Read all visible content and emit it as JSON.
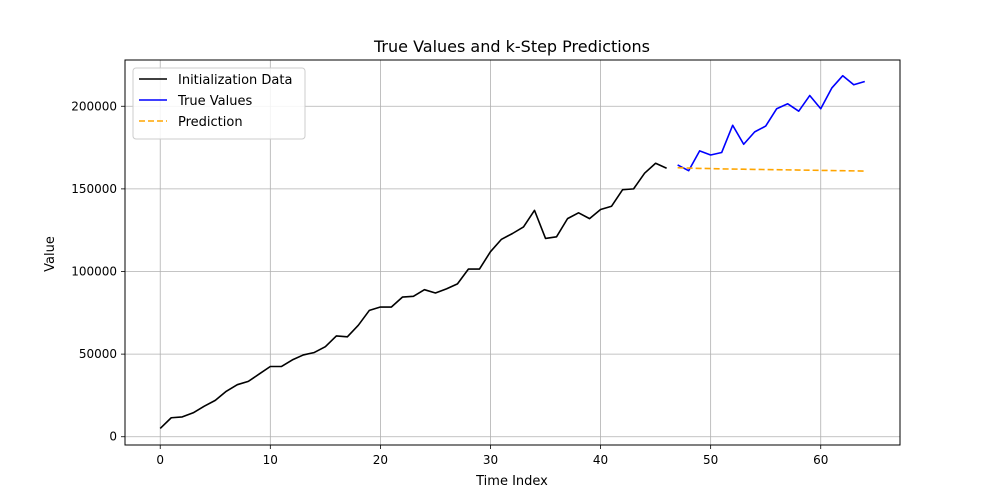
{
  "chart_data": {
    "type": "line",
    "title": "True Values and k-Step Predictions",
    "xlabel": "Time Index",
    "ylabel": "Value",
    "xlim": [
      -3.2,
      67.2
    ],
    "ylim": [
      -5000,
      228000
    ],
    "x_ticks": [
      0,
      10,
      20,
      30,
      40,
      50,
      60
    ],
    "y_ticks": [
      0,
      50000,
      100000,
      150000,
      200000
    ],
    "grid": true,
    "legend_position": "upper left",
    "series": [
      {
        "name": "Initialization Data",
        "color": "#000000",
        "style": "solid",
        "x": [
          0,
          1,
          2,
          3,
          4,
          5,
          6,
          7,
          8,
          9,
          10,
          11,
          12,
          13,
          14,
          15,
          16,
          17,
          18,
          19,
          20,
          21,
          22,
          23,
          24,
          25,
          26,
          27,
          28,
          29,
          30,
          31,
          32,
          33,
          34,
          35,
          36,
          37,
          38,
          39,
          40,
          41,
          42,
          43,
          44,
          45,
          46
        ],
        "y": [
          5000,
          11500,
          12000,
          14500,
          18500,
          22000,
          27500,
          31500,
          33500,
          38000,
          42500,
          42500,
          46500,
          49500,
          51000,
          54500,
          61000,
          60500,
          67500,
          76500,
          78500,
          78500,
          84500,
          85000,
          89000,
          87000,
          89500,
          92500,
          101500,
          101500,
          112000,
          119500,
          123000,
          127000,
          137000,
          120000,
          121000,
          132000,
          135500,
          132000,
          137500,
          139500,
          149500,
          150000,
          159500,
          165500,
          162500
        ]
      },
      {
        "name": "True Values",
        "color": "#0000ff",
        "style": "solid",
        "x": [
          47,
          48,
          49,
          50,
          51,
          52,
          53,
          54,
          55,
          56,
          57,
          58,
          59,
          60,
          61,
          62,
          63,
          64
        ],
        "y": [
          164500,
          161000,
          173000,
          170500,
          172000,
          188500,
          177000,
          184500,
          188000,
          198500,
          201500,
          197000,
          206500,
          198500,
          211000,
          218500,
          213000,
          215000
        ]
      },
      {
        "name": "Prediction",
        "color": "#ffa500",
        "style": "dashed",
        "x": [
          47,
          48,
          49,
          50,
          51,
          52,
          53,
          54,
          55,
          56,
          57,
          58,
          59,
          60,
          61,
          62,
          63,
          64
        ],
        "y": [
          162800,
          162600,
          162400,
          162300,
          162100,
          162000,
          161900,
          161800,
          161700,
          161600,
          161500,
          161400,
          161300,
          161200,
          161100,
          161000,
          160900,
          160800
        ]
      }
    ]
  }
}
